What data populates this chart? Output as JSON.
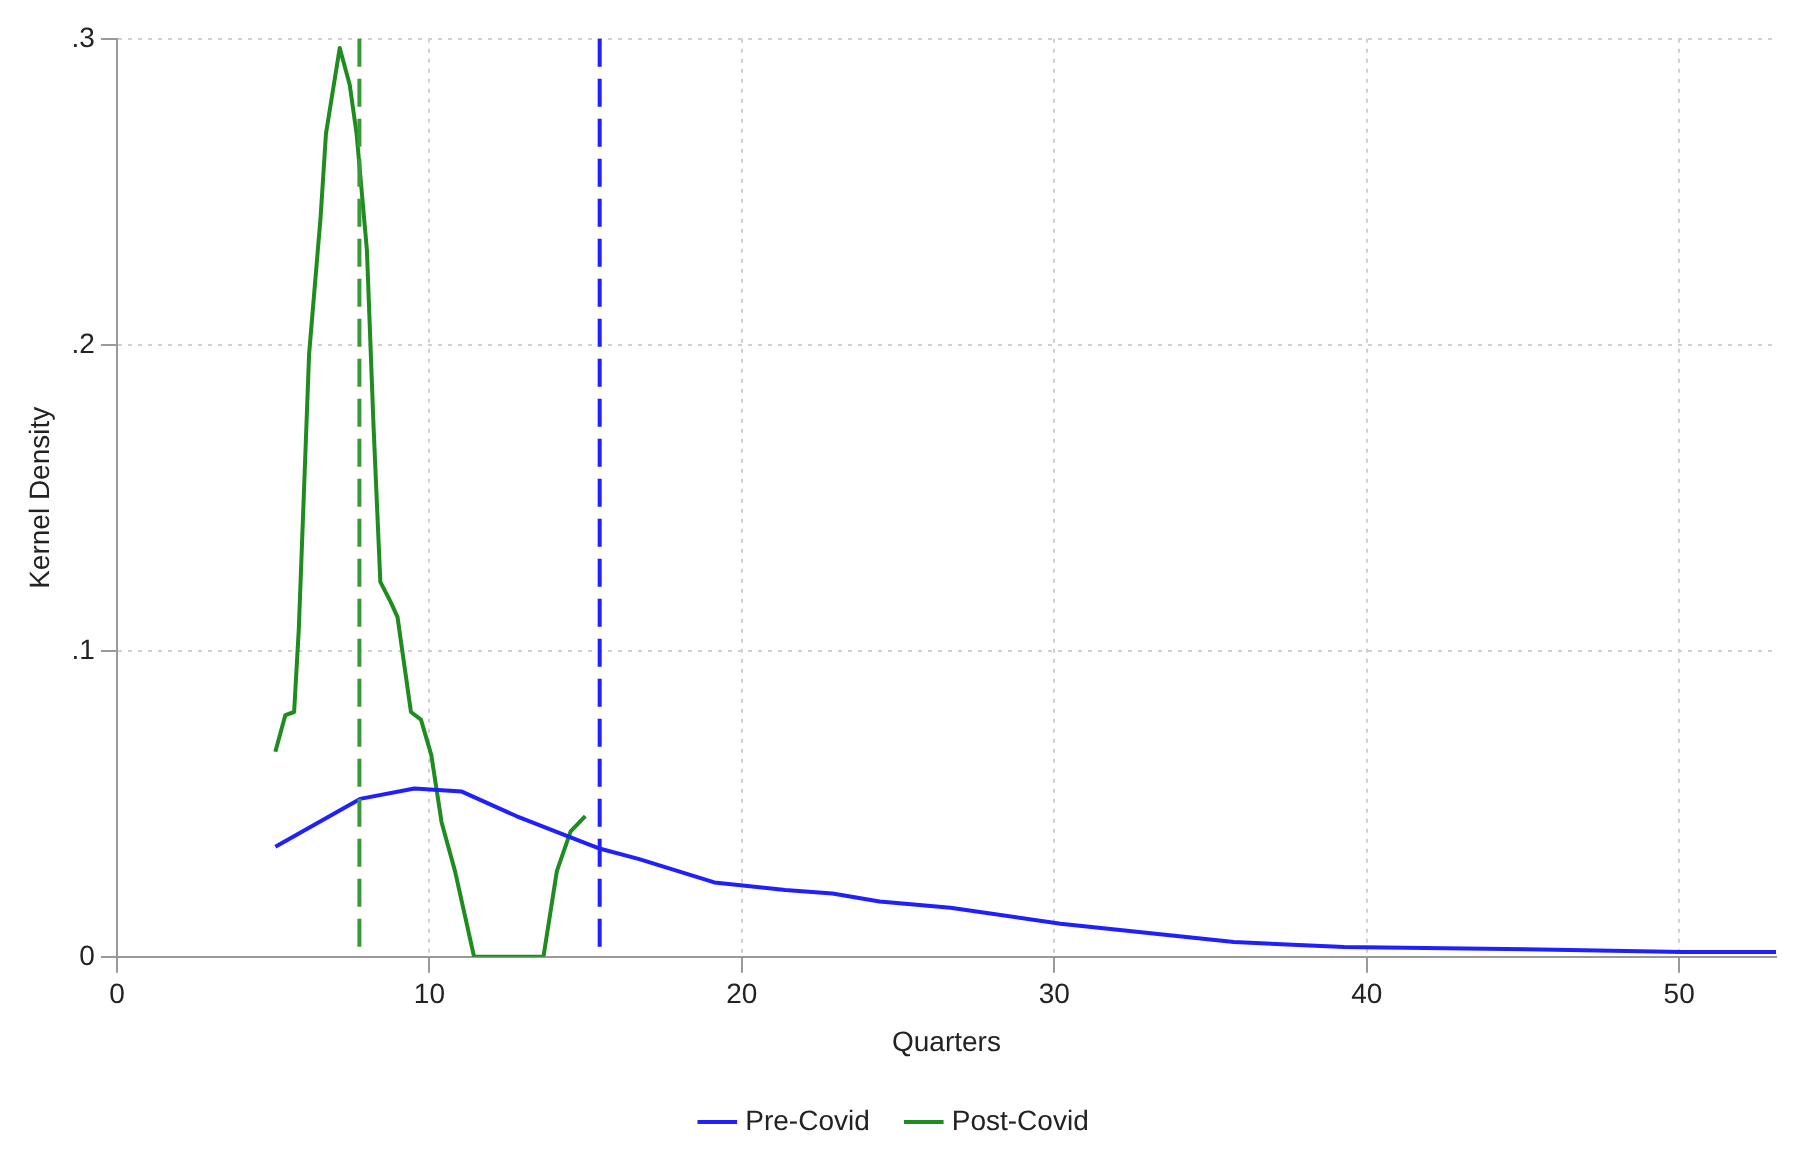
{
  "chart_data": {
    "type": "line",
    "xlabel": "Quarters",
    "ylabel": "Kernel Density",
    "xlim": [
      0,
      53.1
    ],
    "ylim": [
      0,
      0.3
    ],
    "xticks": [
      0,
      10,
      20,
      30,
      40,
      50
    ],
    "yticks": [
      0,
      {
        "value": 0.1,
        "label": ".1"
      },
      {
        "value": 0.2,
        "label": ".2"
      },
      {
        "value": 0.3,
        "label": ".3"
      }
    ],
    "grid": true,
    "legend": "bottom",
    "marker": "none",
    "line_style": "solid",
    "series": [
      {
        "name": "Pre-Covid",
        "color": "#1f1fff",
        "x": [
          5.07,
          7.78,
          9.52,
          11.04,
          12.78,
          14.52,
          15.47,
          16.69,
          19.12,
          21.39,
          22.9,
          24.41,
          26.68,
          30.2,
          35.75,
          39.28,
          45.58,
          50.1,
          53.1
        ],
        "values": [
          0.036,
          0.0516,
          0.055,
          0.054,
          0.046,
          0.039,
          0.0353,
          0.032,
          0.0243,
          0.0218,
          0.0207,
          0.0181,
          0.016,
          0.0108,
          0.0048,
          0.0032,
          0.0024,
          0.0016,
          0.0016
        ]
      },
      {
        "name": "Post-Covid",
        "color": "#1e8c1e",
        "x": [
          5.07,
          5.39,
          5.67,
          5.82,
          6.15,
          6.52,
          6.69,
          7.13,
          7.45,
          7.67,
          8.0,
          8.21,
          8.43,
          8.76,
          8.98,
          9.41,
          9.73,
          10.06,
          10.39,
          10.82,
          11.43,
          13.65,
          14.08,
          14.52,
          14.99
        ],
        "values": [
          0.067,
          0.079,
          0.08,
          0.107,
          0.197,
          0.242,
          0.269,
          0.297,
          0.285,
          0.269,
          0.231,
          0.174,
          0.1225,
          0.116,
          0.111,
          0.08,
          0.0775,
          0.066,
          0.044,
          0.028,
          0,
          0,
          0.028,
          0.041,
          0.046
        ]
      }
    ],
    "ref_lines": [
      {
        "axis": "x",
        "value": 15.45,
        "color": "#1f1fff",
        "line_style": "dashed"
      },
      {
        "axis": "x",
        "value": 7.76,
        "color": "#3a9a3a",
        "line_style": "dashed"
      }
    ]
  }
}
